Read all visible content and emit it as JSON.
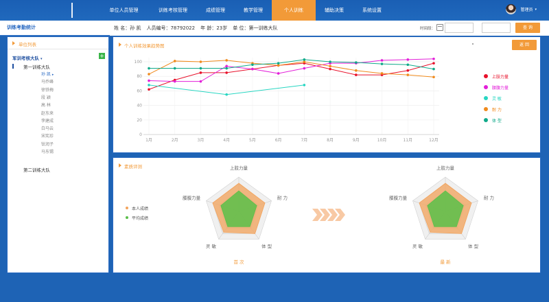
{
  "nav": {
    "items": [
      {
        "label": "单位人员管理",
        "active": false
      },
      {
        "label": "训练考核管理",
        "active": false
      },
      {
        "label": "成绩管理",
        "active": false
      },
      {
        "label": "教学管理",
        "active": false
      },
      {
        "label": "个人训练",
        "active": true
      },
      {
        "label": "辅助决策",
        "active": false
      },
      {
        "label": "系统设置",
        "active": false
      }
    ],
    "user_name": "管理员",
    "user_caret": "▾"
  },
  "header": {
    "page_title": "训练考勤统计",
    "name_field": "姓 名：孙 凯",
    "id_field": "人员编号：78792022",
    "age_field": "年 龄：23岁",
    "unit_field": "单 位：第一训练大队",
    "time_label": "时间段：",
    "query_label": "查 询"
  },
  "sidebar": {
    "title": "单位列表",
    "root": "军训考核大队",
    "root_caret": "▾",
    "add_label": "+",
    "groups": [
      {
        "label": "第一训练大队",
        "members": [
          "孙 凯",
          "马乔峰",
          "徐铁梅",
          "段 颖",
          "高 林",
          "赵东来",
          "李建成",
          "白马云",
          "宋宪珍",
          "钛润子",
          "马东锡"
        ],
        "selected": "孙 凯",
        "selected_arrow": "▸"
      },
      {
        "label": "第二训练大队",
        "members": []
      }
    ]
  },
  "trend_chart": {
    "title": "个人训练效果趋势图",
    "back_label": "返 回",
    "chart_data": {
      "type": "line",
      "categories": [
        "1月",
        "2月",
        "3月",
        "4月",
        "5月",
        "6月",
        "7月",
        "8月",
        "9月",
        "10月",
        "11月",
        "12月"
      ],
      "ylim": [
        0,
        100
      ],
      "yticks": [
        "0",
        "20",
        "40",
        "60",
        "80",
        "100"
      ],
      "grid": true,
      "legend_position": "right",
      "series": [
        {
          "name": "上肢力量",
          "color": "#e8102a",
          "values": [
            62,
            75,
            85,
            85,
            90,
            95,
            98,
            90,
            82,
            82,
            88,
            98
          ]
        },
        {
          "name": "腰腹力量",
          "color": "#e31fd9",
          "values": [
            74,
            73,
            73,
            94,
            90,
            84,
            91,
            98,
            98,
            102,
            103,
            104
          ]
        },
        {
          "name": "灵 敏",
          "color": "#27d6c2",
          "values": [
            68,
            null,
            null,
            55,
            null,
            null,
            68,
            null,
            null,
            null,
            null,
            null
          ]
        },
        {
          "name": "耐 力",
          "color": "#f08a1c",
          "values": [
            83,
            101,
            100,
            102,
            98,
            95,
            100,
            94,
            88,
            84,
            82,
            79
          ]
        },
        {
          "name": "体 型",
          "color": "#0fa989",
          "values": [
            91,
            91,
            91,
            91,
            96,
            98,
            103,
            100,
            99,
            97,
            96,
            90
          ]
        }
      ]
    }
  },
  "radar": {
    "title": "素质评测",
    "legend": [
      {
        "label": "本人成绩",
        "color": "#f4a45c"
      },
      {
        "label": "平均成绩",
        "color": "#5bbf4a"
      }
    ],
    "arrow_color": "#f8c9a4",
    "chart_data": [
      {
        "type": "radar",
        "caption": "首 次",
        "axes": [
          "上肢力量",
          "耐 力",
          "体 型",
          "灵 敏",
          "腰腹力量"
        ],
        "max": 100,
        "series": [
          {
            "name": "本人成绩",
            "color": "#f4a45c",
            "values": [
              82,
              80,
              80,
              75,
              80
            ]
          },
          {
            "name": "平均成绩",
            "color": "#5bbf4a",
            "values": [
              60,
              55,
              55,
              55,
              55
            ]
          }
        ]
      },
      {
        "type": "radar",
        "caption": "最 新",
        "axes": [
          "上肢力量",
          "耐 力",
          "体 型",
          "灵 敏",
          "腰腹力量"
        ],
        "max": 100,
        "series": [
          {
            "name": "本人成绩",
            "color": "#f4a45c",
            "values": [
              82,
              80,
              80,
              75,
              80
            ]
          },
          {
            "name": "平均成绩",
            "color": "#5bbf4a",
            "values": [
              60,
              55,
              55,
              55,
              55
            ]
          }
        ]
      }
    ]
  }
}
